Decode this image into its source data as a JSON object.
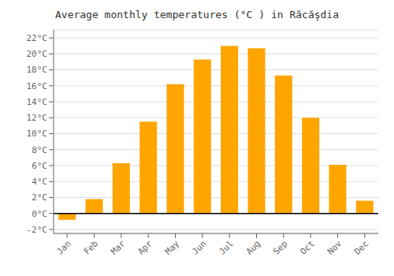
{
  "chart_data": {
    "type": "bar",
    "title": "Average monthly temperatures (°C ) in Răcăşdia",
    "categories": [
      "Jan",
      "Feb",
      "Mar",
      "Apr",
      "May",
      "Jun",
      "Jul",
      "Aug",
      "Sep",
      "Oct",
      "Nov",
      "Dec"
    ],
    "values": [
      -0.8,
      1.8,
      6.3,
      11.5,
      16.2,
      19.3,
      21.0,
      20.7,
      17.3,
      12.0,
      6.1,
      1.6
    ],
    "color": "#FFA500",
    "ylim": [
      -2.5,
      23
    ],
    "yticks": [
      {
        "value": -2,
        "label": "-2°C"
      },
      {
        "value": 0,
        "label": "0°C"
      },
      {
        "value": 2,
        "label": "2°C"
      },
      {
        "value": 4,
        "label": "4°C"
      },
      {
        "value": 6,
        "label": "6°C"
      },
      {
        "value": 8,
        "label": "8°C"
      },
      {
        "value": 10,
        "label": "10°C"
      },
      {
        "value": 12,
        "label": "12°C"
      },
      {
        "value": 14,
        "label": "14°C"
      },
      {
        "value": 16,
        "label": "16°C"
      },
      {
        "value": 18,
        "label": "18°C"
      },
      {
        "value": 20,
        "label": "20°C"
      },
      {
        "value": 22,
        "label": "22°C"
      }
    ],
    "grid": true
  }
}
